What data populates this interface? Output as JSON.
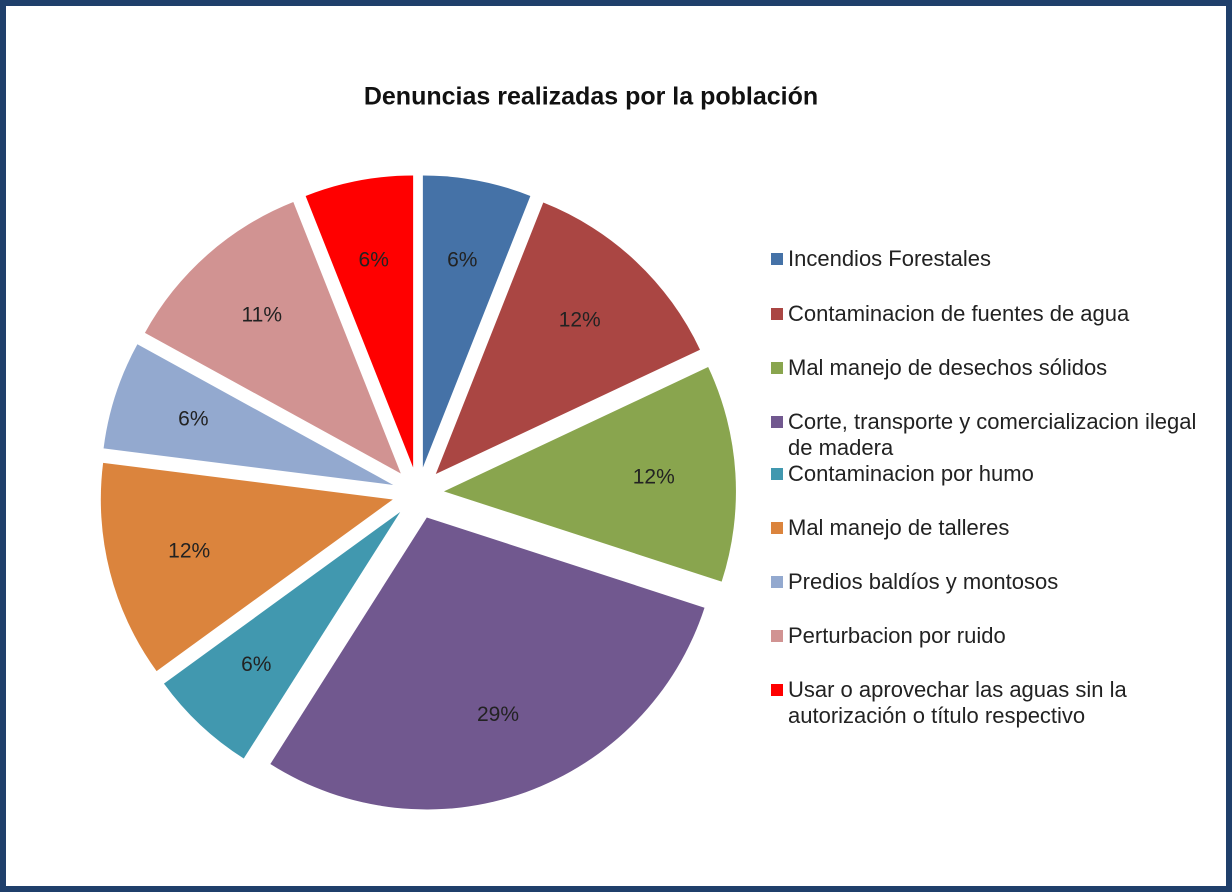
{
  "chart_data": {
    "type": "pie",
    "title": "Denuncias realizadas por la población",
    "categories": [
      "Incendios Forestales",
      "Contaminacion de fuentes de agua",
      "Mal manejo de desechos sólidos",
      "Corte, transporte y comercializacion ilegal de madera",
      "Contaminacion por humo",
      "Mal manejo de talleres",
      "Predios baldíos y montosos",
      "Perturbacion por ruido",
      "Usar o aprovechar las aguas sin la autorización o título respectivo"
    ],
    "values": [
      6,
      12,
      12,
      29,
      6,
      12,
      6,
      11,
      6
    ],
    "value_labels": [
      "6%",
      "12%",
      "12%",
      "29%",
      "6%",
      "12%",
      "6%",
      "11%",
      "6%"
    ],
    "colors": [
      "#4572a7",
      "#aa4643",
      "#89a54e",
      "#71588f",
      "#4198af",
      "#db843d",
      "#93a9cf",
      "#d19392",
      "#ff0000"
    ],
    "legend": "right"
  }
}
